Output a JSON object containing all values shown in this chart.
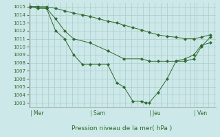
{
  "bg_color": "#cce8e8",
  "grid_color": "#aacccc",
  "line_color": "#2d6a2d",
  "marker_color": "#2d6a2d",
  "ylim": [
    1002.5,
    1015.5
  ],
  "yticks": [
    1003,
    1004,
    1005,
    1006,
    1007,
    1008,
    1009,
    1010,
    1011,
    1012,
    1013,
    1014,
    1015
  ],
  "xlabel": "Pression niveau de la mer( hPa )",
  "day_labels": [
    "Mer",
    "Sam",
    "Jeu",
    "Ven"
  ],
  "day_positions": [
    0.0,
    0.33,
    0.66,
    0.91
  ],
  "series": [
    {
      "x": [
        0,
        0.04,
        0.09,
        0.14,
        0.19,
        0.24,
        0.29,
        0.33,
        0.38,
        0.43,
        0.48,
        0.52,
        0.57,
        0.62,
        0.66,
        0.71,
        0.76,
        0.81,
        0.86,
        0.91,
        0.95,
        1.0
      ],
      "y": [
        1015,
        1015,
        1015,
        1014.8,
        1014.5,
        1014.2,
        1014.0,
        1013.8,
        1013.5,
        1013.2,
        1013.0,
        1012.7,
        1012.4,
        1012.1,
        1011.8,
        1011.5,
        1011.3,
        1011.2,
        1011.0,
        1011.0,
        1011.2,
        1011.5
      ]
    },
    {
      "x": [
        0,
        0.04,
        0.09,
        0.14,
        0.19,
        0.24,
        0.33,
        0.43,
        0.52,
        0.62,
        0.66,
        0.71,
        0.76,
        0.81,
        0.86,
        0.91,
        0.95,
        1.0
      ],
      "y": [
        1015,
        1015,
        1014.8,
        1013.5,
        1012.0,
        1011.0,
        1010.5,
        1009.5,
        1008.5,
        1008.5,
        1008.2,
        1008.2,
        1008.2,
        1008.2,
        1008.5,
        1009.0,
        1010.2,
        1010.5
      ]
    },
    {
      "x": [
        0,
        0.04,
        0.09,
        0.14,
        0.19,
        0.24,
        0.29,
        0.33,
        0.38,
        0.43,
        0.48,
        0.52,
        0.57,
        0.62,
        0.64,
        0.66,
        0.71,
        0.76,
        0.81,
        0.86,
        0.91,
        0.95,
        1.0
      ],
      "y": [
        1015,
        1014.8,
        1014.8,
        1012.0,
        1011.0,
        1009.0,
        1007.8,
        1007.8,
        1007.8,
        1007.8,
        1005.5,
        1005.0,
        1003.2,
        1003.2,
        1003.0,
        1003.0,
        1004.3,
        1006.0,
        1008.2,
        1008.2,
        1008.5,
        1010.0,
        1011.2
      ]
    }
  ]
}
